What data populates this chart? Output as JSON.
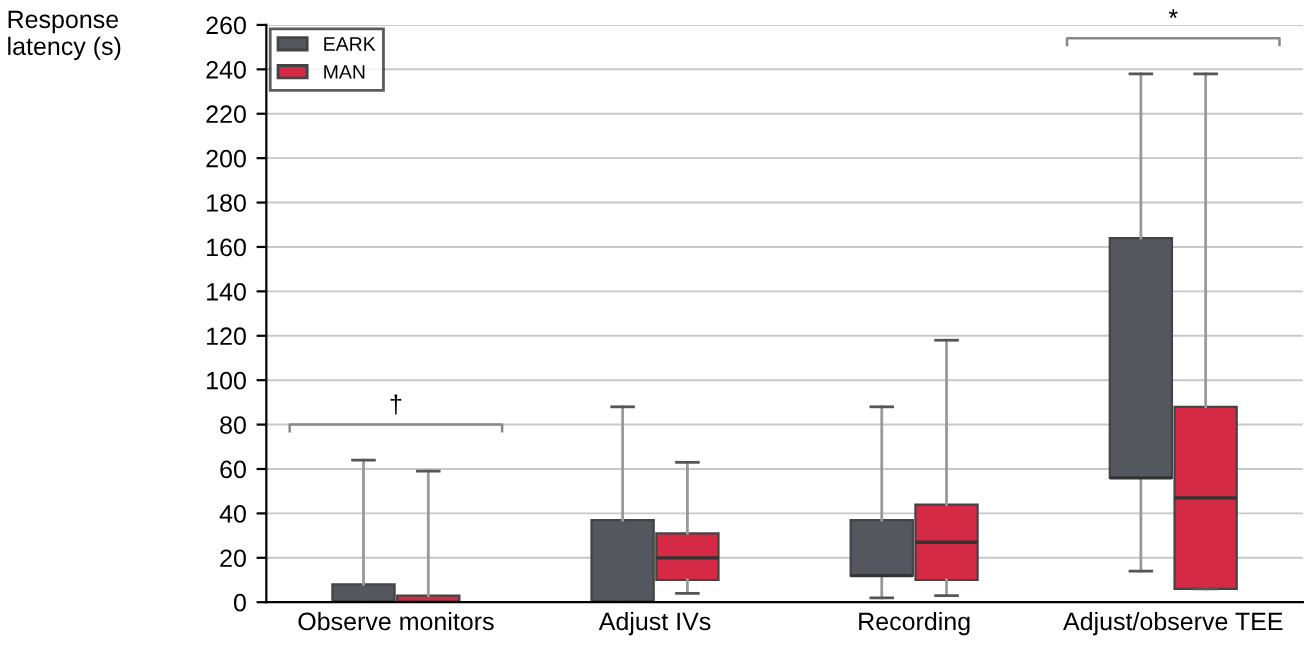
{
  "chart_data": {
    "type": "box",
    "ylabel": "Response\nlatency (s)",
    "categories": [
      "Observe monitors",
      "Adjust IVs",
      "Recording",
      "Adjust/observe TEE"
    ],
    "series": [
      {
        "name": "EARK",
        "color": "#55575f",
        "boxes": [
          {
            "low": 0,
            "q1": 0,
            "median": 0,
            "q3": 8,
            "high": 64
          },
          {
            "low": 0,
            "q1": 0,
            "median": 0,
            "q3": 37,
            "high": 88
          },
          {
            "low": 2,
            "q1": 12,
            "median": 12,
            "q3": 37,
            "high": 88
          },
          {
            "low": 14,
            "q1": 56,
            "median": 56,
            "q3": 164,
            "high": 238
          }
        ]
      },
      {
        "name": "MAN",
        "color": "#d42a45",
        "boxes": [
          {
            "low": 0,
            "q1": 0,
            "median": 0,
            "q3": 3,
            "high": 59
          },
          {
            "low": 4,
            "q1": 10,
            "median": 20,
            "q3": 31,
            "high": 63
          },
          {
            "low": 3,
            "q1": 10,
            "median": 27,
            "q3": 44,
            "high": 118
          },
          {
            "low": 6,
            "q1": 6,
            "median": 47,
            "q3": 88,
            "high": 238
          }
        ]
      }
    ],
    "annotations": [
      "†",
      "*"
    ],
    "ylim": [
      0,
      260
    ],
    "yticks": [
      0,
      20,
      40,
      60,
      80,
      100,
      120,
      140,
      160,
      180,
      200,
      220,
      240,
      260
    ],
    "grid": "y",
    "legend": "top left"
  }
}
